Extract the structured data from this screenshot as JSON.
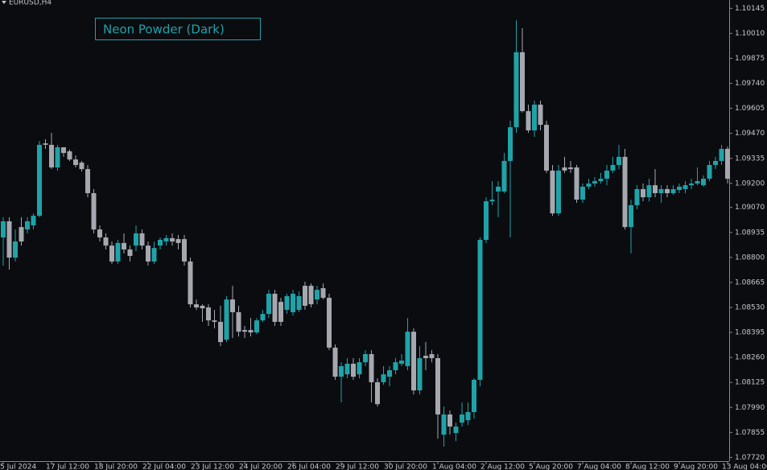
{
  "chart_data": {
    "type": "candlestick",
    "symbol": "EURUSD,H4",
    "theme_label": "Neon Powder (Dark)",
    "up_color": "#1fa3a8",
    "down_color": "#a7a7b0",
    "ylim": [
      1.077,
      1.1019
    ],
    "yticks": [
      1.10145,
      {
        "value": 1.1001,
        "label": "1.10010"
      },
      1.09875,
      {
        "value": 1.0974,
        "label": "1.09740"
      },
      1.09605,
      {
        "value": 1.0947,
        "label": "1.09470"
      },
      1.09335,
      {
        "value": 1.092,
        "label": "1.09200"
      },
      {
        "value": 1.0907,
        "label": "1.09070"
      },
      1.08935,
      {
        "value": 1.088,
        "label": "1.08800"
      },
      1.08665,
      {
        "value": 1.0853,
        "label": "1.08530"
      },
      1.08395,
      {
        "value": 1.0826,
        "label": "1.08260"
      },
      1.08125,
      {
        "value": 1.0799,
        "label": "1.07990"
      },
      1.07855,
      {
        "value": 1.0772,
        "label": "1.07720"
      }
    ],
    "categories": [
      "5 Jul 2024",
      null,
      null,
      null,
      null,
      null,
      null,
      null,
      "17 Jul 12:00",
      null,
      null,
      null,
      null,
      null,
      null,
      null,
      "18 Jul 20:00",
      null,
      null,
      null,
      null,
      null,
      null,
      null,
      "22 Jul 04:00",
      null,
      null,
      null,
      null,
      null,
      null,
      null,
      "23 Jul 12:00",
      null,
      null,
      null,
      null,
      null,
      null,
      null,
      "24 Jul 20:00",
      null,
      null,
      null,
      null,
      null,
      null,
      null,
      "26 Jul 04:00",
      null,
      null,
      null,
      null,
      null,
      null,
      null,
      "29 Jul 12:00",
      null,
      null,
      null,
      null,
      null,
      null,
      null,
      "30 Jul 20:00",
      null,
      null,
      null,
      null,
      null,
      null,
      null,
      "1 Aug 04:00",
      null,
      null,
      null,
      null,
      null,
      null,
      null,
      "2 Aug 12:00",
      null,
      null,
      null,
      null,
      null,
      null,
      null,
      "5 Aug 20:00",
      null,
      null,
      null,
      null,
      null,
      null,
      null,
      "7 Aug 04:00",
      null,
      null,
      null,
      null,
      null,
      null,
      null,
      "8 Aug 12:00",
      null,
      null,
      null,
      null,
      null,
      null,
      null,
      "9 Aug 20:00",
      null,
      null,
      null,
      null,
      null,
      null,
      null,
      "13 Aug 04:00"
    ],
    "ohlc": [
      [
        1.08908,
        1.09017,
        1.08756,
        1.08995
      ],
      [
        1.08995,
        1.09017,
        1.08734,
        1.08799
      ],
      [
        1.08799,
        1.08951,
        1.08778,
        1.08886
      ],
      [
        1.08964,
        1.09017,
        1.08864,
        1.08886
      ],
      [
        1.08951,
        1.09017,
        1.0893,
        1.08995
      ],
      [
        1.08973,
        1.09038,
        1.08951,
        1.09025
      ],
      [
        1.09025,
        1.09429,
        1.09017,
        1.09408
      ],
      [
        1.09416,
        1.09438,
        1.09386,
        1.09408
      ],
      [
        1.09408,
        1.09473,
        1.09277,
        1.09286
      ],
      [
        1.09286,
        1.09408,
        1.09269,
        1.09395
      ],
      [
        1.09395,
        1.09395,
        1.09343,
        1.09364
      ],
      [
        1.09373,
        1.09382,
        1.09321,
        1.09329
      ],
      [
        1.09329,
        1.09351,
        1.09286,
        1.09299
      ],
      [
        1.09312,
        1.09321,
        1.09264,
        1.09277
      ],
      [
        1.09277,
        1.09299,
        1.09125,
        1.09147
      ],
      [
        1.09147,
        1.09169,
        1.0893,
        1.08951
      ],
      [
        1.08951,
        1.08973,
        1.08886,
        1.08908
      ],
      [
        1.08908,
        1.0893,
        1.08843,
        1.08864
      ],
      [
        1.08864,
        1.08886,
        1.08765,
        1.08778
      ],
      [
        1.08778,
        1.08895,
        1.08765,
        1.08878
      ],
      [
        1.08878,
        1.0893,
        1.08821,
        1.08843
      ],
      [
        1.08843,
        1.08864,
        1.08778,
        1.08808
      ],
      [
        1.08864,
        1.08973,
        1.08834,
        1.0893
      ],
      [
        1.0893,
        1.08951,
        1.08843,
        1.08864
      ],
      [
        1.08864,
        1.08886,
        1.08756,
        1.08778
      ],
      [
        1.08778,
        1.08886,
        1.08765,
        1.08851
      ],
      [
        1.08864,
        1.08908,
        1.08843,
        1.08895
      ],
      [
        1.08886,
        1.08921,
        1.08864,
        1.08904
      ],
      [
        1.08904,
        1.0893,
        1.08864,
        1.08886
      ],
      [
        1.08899,
        1.08921,
        1.08843,
        1.08878
      ],
      [
        1.08899,
        1.08921,
        1.08756,
        1.08778
      ],
      [
        1.08778,
        1.08799,
        1.0853,
        1.08547
      ],
      [
        1.08547,
        1.08573,
        1.08517,
        1.0853
      ],
      [
        1.08539,
        1.08547,
        1.08452,
        1.08525
      ],
      [
        1.0853,
        1.08547,
        1.0843,
        1.0846
      ],
      [
        1.0846,
        1.08517,
        1.08417,
        1.08452
      ],
      [
        1.08452,
        1.08539,
        1.08321,
        1.08343
      ],
      [
        1.08356,
        1.08591,
        1.08343,
        1.08573
      ],
      [
        1.08573,
        1.08647,
        1.08365,
        1.08504
      ],
      [
        1.08504,
        1.08539,
        1.08373,
        1.08399
      ],
      [
        1.08408,
        1.0843,
        1.08365,
        1.08399
      ],
      [
        1.08408,
        1.08473,
        1.08373,
        1.08395
      ],
      [
        1.08395,
        1.08473,
        1.08386,
        1.0846
      ],
      [
        1.0846,
        1.08517,
        1.08452,
        1.08495
      ],
      [
        1.08495,
        1.08625,
        1.08473,
        1.08604
      ],
      [
        1.08604,
        1.08625,
        1.0843,
        1.08452
      ],
      [
        1.0856,
        1.08582,
        1.0843,
        1.08452
      ],
      [
        1.08517,
        1.08604,
        1.08495,
        1.08591
      ],
      [
        1.08504,
        1.08625,
        1.08486,
        1.08604
      ],
      [
        1.08517,
        1.08617,
        1.08504,
        1.08591
      ],
      [
        1.08647,
        1.08669,
        1.08517,
        1.08539
      ],
      [
        1.08647,
        1.0866,
        1.0853,
        1.08547
      ],
      [
        1.08573,
        1.08647,
        1.08547,
        1.08625
      ],
      [
        1.08634,
        1.0866,
        1.08573,
        1.08582
      ],
      [
        1.08582,
        1.08604,
        1.08299,
        1.08313
      ],
      [
        1.08313,
        1.0833,
        1.08139,
        1.08156
      ],
      [
        1.08156,
        1.08234,
        1.08017,
        1.08213
      ],
      [
        1.08169,
        1.08256,
        1.08147,
        1.08226
      ],
      [
        1.08226,
        1.08256,
        1.08139,
        1.08156
      ],
      [
        1.08169,
        1.08256,
        1.08147,
        1.08234
      ],
      [
        1.08234,
        1.08299,
        1.08213,
        1.08278
      ],
      [
        1.08278,
        1.08299,
        1.08017,
        1.08126
      ],
      [
        1.08126,
        1.08147,
        1.07995,
        1.08008
      ],
      [
        1.08126,
        1.08213,
        1.08113,
        1.08169
      ],
      [
        1.08156,
        1.08213,
        1.08104,
        1.08191
      ],
      [
        1.08191,
        1.08256,
        1.08169,
        1.08234
      ],
      [
        1.08226,
        1.08278,
        1.08213,
        1.08243
      ],
      [
        1.08213,
        1.08473,
        1.08191,
        1.08399
      ],
      [
        1.08399,
        1.08417,
        1.0806,
        1.08082
      ],
      [
        1.08082,
        1.08321,
        1.0806,
        1.08256
      ],
      [
        1.08269,
        1.08343,
        1.08191,
        1.08256
      ],
      [
        1.08278,
        1.08299,
        1.08234,
        1.08256
      ],
      [
        1.08256,
        1.08278,
        1.07821,
        1.07952
      ],
      [
        1.07843,
        1.07995,
        1.07778,
        1.07952
      ],
      [
        1.07952,
        1.07974,
        1.07843,
        1.07887
      ],
      [
        1.07852,
        1.07908,
        1.07808,
        1.07887
      ],
      [
        1.07908,
        1.08017,
        1.07887,
        1.07952
      ],
      [
        1.07921,
        1.08017,
        1.07895,
        1.07965
      ],
      [
        1.07965,
        1.08147,
        1.0793,
        1.08139
      ],
      [
        1.08139,
        1.08908,
        1.08104,
        1.08895
      ],
      [
        1.08895,
        1.09125,
        1.08878,
        1.09103
      ],
      [
        1.09103,
        1.09212,
        1.09082,
        1.09112
      ],
      [
        1.09156,
        1.09212,
        1.09017,
        1.09182
      ],
      [
        1.09156,
        1.09364,
        1.09147,
        1.09321
      ],
      [
        1.09321,
        1.09538,
        1.08908,
        1.09503
      ],
      [
        1.09503,
        1.10081,
        1.09473,
        1.09908
      ],
      [
        1.09908,
        1.10038,
        1.09582,
        1.0959
      ],
      [
        1.0959,
        1.09625,
        1.09473,
        1.09486
      ],
      [
        1.09486,
        1.09647,
        1.09451,
        1.09625
      ],
      [
        1.09625,
        1.09647,
        1.09486,
        1.09516
      ],
      [
        1.09516,
        1.09538,
        1.09256,
        1.09269
      ],
      [
        1.09269,
        1.09299,
        1.09025,
        1.09038
      ],
      [
        1.09038,
        1.09299,
        1.09025,
        1.09269
      ],
      [
        1.09286,
        1.09343,
        1.09256,
        1.09269
      ],
      [
        1.09286,
        1.09321,
        1.09256,
        1.09277
      ],
      [
        1.09286,
        1.09299,
        1.09095,
        1.09112
      ],
      [
        1.09112,
        1.09199,
        1.09095,
        1.09182
      ],
      [
        1.09182,
        1.09225,
        1.09169,
        1.09199
      ],
      [
        1.09199,
        1.09234,
        1.09182,
        1.09212
      ],
      [
        1.09212,
        1.09256,
        1.09199,
        1.09225
      ],
      [
        1.09225,
        1.09299,
        1.0919,
        1.09269
      ],
      [
        1.09269,
        1.09343,
        1.09256,
        1.09299
      ],
      [
        1.09299,
        1.09408,
        1.09277,
        1.09343
      ],
      [
        1.09343,
        1.09386,
        1.08951,
        1.08964
      ],
      [
        1.08964,
        1.09112,
        1.08821,
        1.09082
      ],
      [
        1.09082,
        1.0919,
        1.0906,
        1.09169
      ],
      [
        1.09169,
        1.09199,
        1.09103,
        1.09125
      ],
      [
        1.09125,
        1.09225,
        1.09103,
        1.0919
      ],
      [
        1.0919,
        1.09277,
        1.09125,
        1.09147
      ],
      [
        1.09147,
        1.0919,
        1.09095,
        1.09169
      ],
      [
        1.09169,
        1.0919,
        1.09125,
        1.09147
      ],
      [
        1.09147,
        1.0919,
        1.09138,
        1.09169
      ],
      [
        1.09164,
        1.09199,
        1.09147,
        1.09182
      ],
      [
        1.09169,
        1.09212,
        1.09147,
        1.0919
      ],
      [
        1.0919,
        1.09225,
        1.09169,
        1.09199
      ],
      [
        1.09199,
        1.09286,
        1.0919,
        1.09212
      ],
      [
        1.0919,
        1.09243,
        1.09182,
        1.09225
      ],
      [
        1.09225,
        1.09321,
        1.09212,
        1.09299
      ],
      [
        1.09299,
        1.09343,
        1.09277,
        1.09321
      ],
      [
        1.09321,
        1.09408,
        1.09299,
        1.09386
      ],
      [
        1.09386,
        1.09399,
        1.09199,
        1.09225
      ]
    ]
  }
}
